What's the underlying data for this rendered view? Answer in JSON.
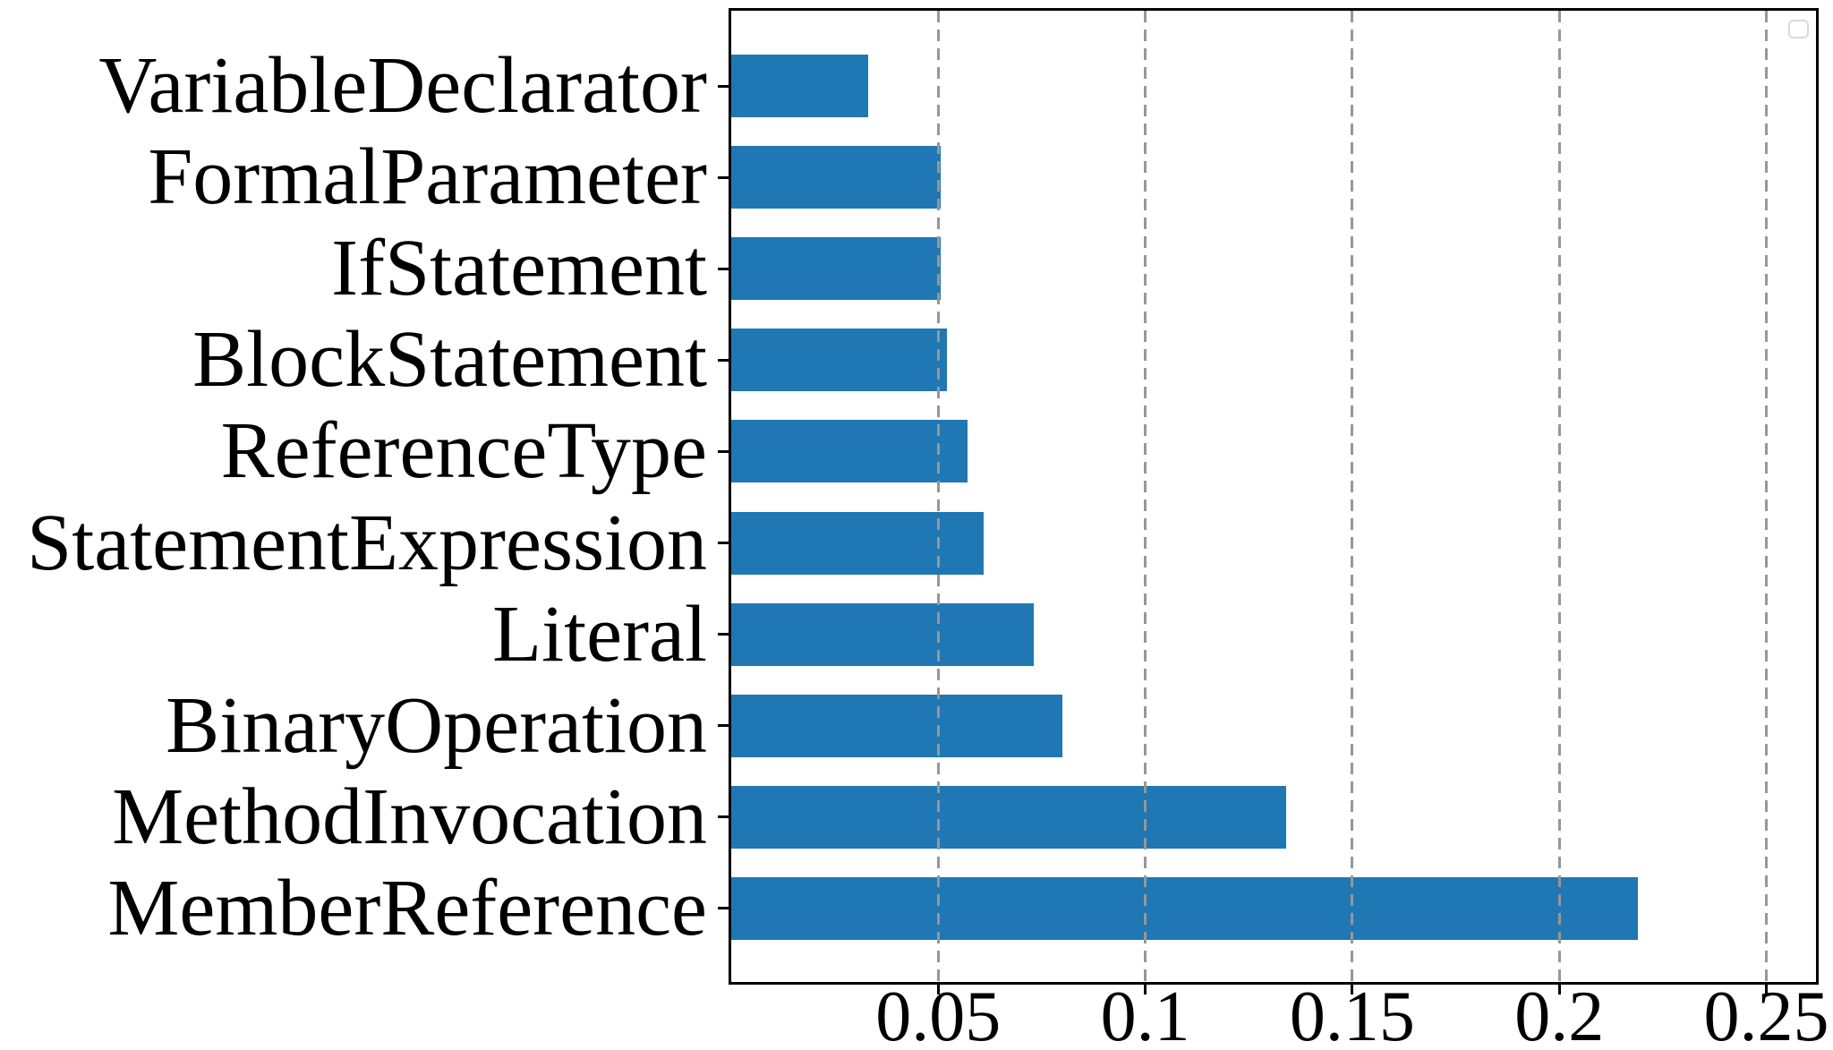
{
  "chart_data": {
    "type": "bar",
    "orientation": "horizontal",
    "title": "",
    "xlabel": "",
    "ylabel": "",
    "categories": [
      "VariableDeclarator",
      "FormalParameter",
      "IfStatement",
      "BlockStatement",
      "ReferenceType",
      "StatementExpression",
      "Literal",
      "BinaryOperation",
      "MethodInvocation",
      "MemberReference"
    ],
    "values": [
      0.033,
      0.0505,
      0.0505,
      0.052,
      0.057,
      0.061,
      0.073,
      0.08,
      0.134,
      0.219
    ],
    "xlim": [
      0,
      0.262
    ],
    "xticks": [
      0.05,
      0.1,
      0.15,
      0.2,
      0.25
    ],
    "xtick_labels": [
      "0.05",
      "0.1",
      "0.15",
      "0.2",
      "0.25"
    ],
    "grid": "vertical-dashed-over-bars",
    "legend": {
      "visible": true,
      "entries": []
    },
    "colors": {
      "bar": "#1f77b4",
      "grid": "#979797",
      "spine": "#000000",
      "text": "#000000",
      "legend_border": "#d9d9d9",
      "background": "#ffffff"
    }
  }
}
